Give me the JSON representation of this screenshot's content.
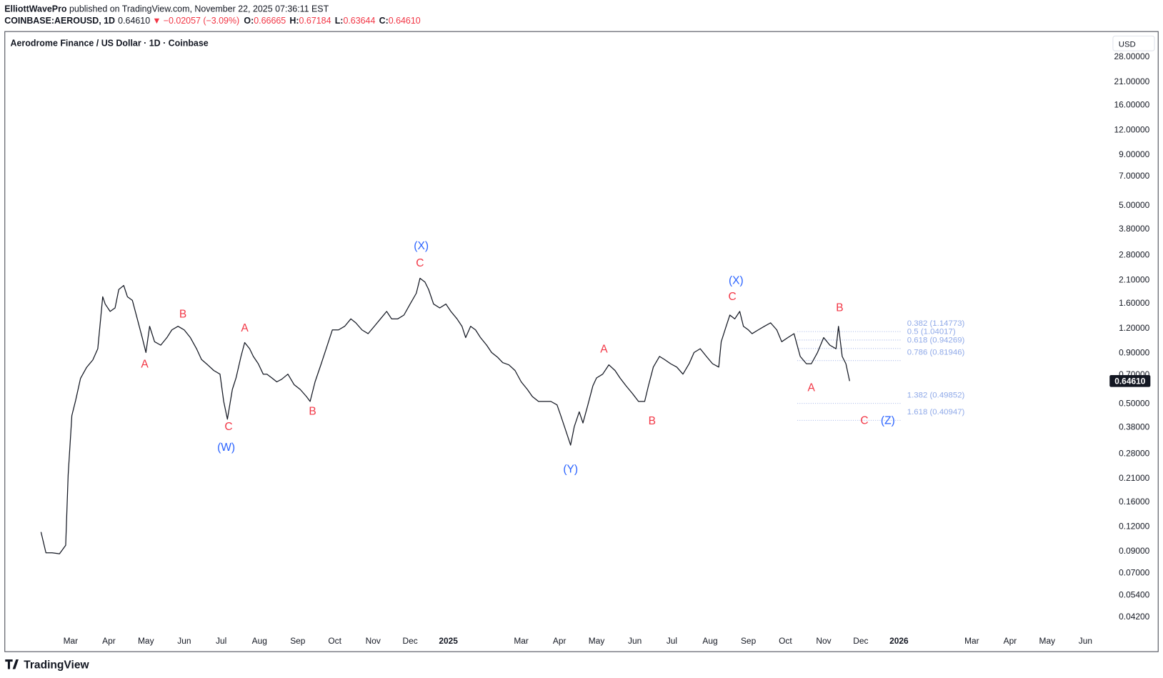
{
  "header": {
    "author": "ElliottWavePro",
    "published": " published on TradingView.com, November 22, 2025 07:36:11 EST",
    "symbol": "COINBASE:AEROUSD, 1D",
    "last": "0.64610",
    "arrow": "▼",
    "change": "−0.02057 (−3.09%)",
    "o_label": "O:",
    "o": "0.66665",
    "h_label": "H:",
    "h": "0.67184",
    "l_label": "L:",
    "l": "0.63644",
    "c_label": "C:",
    "c": "0.64610"
  },
  "footer": {
    "brand": "TradingView"
  },
  "chart_data": {
    "type": "line",
    "title": "Aerodrome Finance / US Dollar · 1D · Coinbase",
    "currency": "USD",
    "color": "#131722",
    "log_scale": true,
    "grid": false,
    "x": [
      "2024-02-06",
      "2024-02-10",
      "2024-02-15",
      "2024-02-21",
      "2024-02-26",
      "2024-02-28",
      "2024-03-02",
      "2024-03-05",
      "2024-03-09",
      "2024-03-14",
      "2024-03-19",
      "2024-03-23",
      "2024-03-27",
      "2024-03-29",
      "2024-04-02",
      "2024-04-06",
      "2024-04-09",
      "2024-04-13",
      "2024-04-16",
      "2024-04-20",
      "2024-04-24",
      "2024-04-28",
      "2024-05-01",
      "2024-05-04",
      "2024-05-08",
      "2024-05-13",
      "2024-05-18",
      "2024-05-22",
      "2024-05-27",
      "2024-06-01",
      "2024-06-06",
      "2024-06-11",
      "2024-06-15",
      "2024-06-20",
      "2024-06-25",
      "2024-06-30",
      "2024-07-03",
      "2024-07-06",
      "2024-07-10",
      "2024-07-13",
      "2024-07-17",
      "2024-07-20",
      "2024-07-24",
      "2024-07-27",
      "2024-07-31",
      "2024-08-04",
      "2024-08-07",
      "2024-08-11",
      "2024-08-15",
      "2024-08-19",
      "2024-08-24",
      "2024-08-29",
      "2024-09-03",
      "2024-09-08",
      "2024-09-11",
      "2024-09-15",
      "2024-09-20",
      "2024-09-24",
      "2024-09-29",
      "2024-10-04",
      "2024-10-09",
      "2024-10-14",
      "2024-10-18",
      "2024-10-23",
      "2024-10-28",
      "2024-11-02",
      "2024-11-07",
      "2024-11-12",
      "2024-11-16",
      "2024-11-21",
      "2024-11-26",
      "2024-12-01",
      "2024-12-06",
      "2024-12-09",
      "2024-12-13",
      "2024-12-16",
      "2024-12-20",
      "2024-12-25",
      "2024-12-30",
      "2025-01-03",
      "2025-01-08",
      "2025-01-12",
      "2025-01-15",
      "2025-01-19",
      "2025-01-23",
      "2025-01-27",
      "2025-02-01",
      "2025-02-05",
      "2025-02-10",
      "2025-02-14",
      "2025-02-19",
      "2025-02-24",
      "2025-03-01",
      "2025-03-06",
      "2025-03-10",
      "2025-03-15",
      "2025-03-20",
      "2025-03-25",
      "2025-03-30",
      "2025-04-02",
      "2025-04-06",
      "2025-04-10",
      "2025-04-13",
      "2025-04-17",
      "2025-04-20",
      "2025-04-24",
      "2025-04-28",
      "2025-05-01",
      "2025-05-06",
      "2025-05-11",
      "2025-05-16",
      "2025-05-20",
      "2025-05-25",
      "2025-05-30",
      "2025-06-04",
      "2025-06-09",
      "2025-06-12",
      "2025-06-16",
      "2025-06-21",
      "2025-06-25",
      "2025-06-30",
      "2025-07-05",
      "2025-07-10",
      "2025-07-15",
      "2025-07-19",
      "2025-07-24",
      "2025-07-29",
      "2025-08-03",
      "2025-08-08",
      "2025-08-10",
      "2025-08-14",
      "2025-08-17",
      "2025-08-21",
      "2025-08-25",
      "2025-08-28",
      "2025-09-01",
      "2025-09-04",
      "2025-09-09",
      "2025-09-14",
      "2025-09-19",
      "2025-09-24",
      "2025-09-28",
      "2025-10-03",
      "2025-10-08",
      "2025-10-13",
      "2025-10-18",
      "2025-10-22",
      "2025-10-27",
      "2025-11-01",
      "2025-11-06",
      "2025-11-11",
      "2025-11-13",
      "2025-11-16",
      "2025-11-19",
      "2025-11-22"
    ],
    "values": [
      0.112,
      0.088,
      0.088,
      0.087,
      0.096,
      0.217,
      0.433,
      0.514,
      0.666,
      0.758,
      0.826,
      0.94,
      1.72,
      1.58,
      1.45,
      1.51,
      1.87,
      1.96,
      1.72,
      1.65,
      1.33,
      1.07,
      0.9,
      1.22,
      1.02,
      0.98,
      1.07,
      1.17,
      1.22,
      1.17,
      1.07,
      0.94,
      0.83,
      0.78,
      0.73,
      0.7,
      0.51,
      0.415,
      0.586,
      0.67,
      0.86,
      1.01,
      0.94,
      0.86,
      0.79,
      0.7,
      0.7,
      0.67,
      0.64,
      0.66,
      0.7,
      0.62,
      0.586,
      0.54,
      0.51,
      0.64,
      0.79,
      0.94,
      1.17,
      1.17,
      1.22,
      1.33,
      1.27,
      1.17,
      1.12,
      1.22,
      1.33,
      1.45,
      1.33,
      1.33,
      1.39,
      1.58,
      1.79,
      2.13,
      2.04,
      1.87,
      1.58,
      1.51,
      1.58,
      1.45,
      1.33,
      1.22,
      1.07,
      1.22,
      1.17,
      1.07,
      0.98,
      0.9,
      0.85,
      0.8,
      0.78,
      0.73,
      0.64,
      0.586,
      0.54,
      0.51,
      0.51,
      0.51,
      0.49,
      0.433,
      0.365,
      0.307,
      0.381,
      0.452,
      0.397,
      0.49,
      0.61,
      0.67,
      0.7,
      0.78,
      0.73,
      0.67,
      0.61,
      0.56,
      0.51,
      0.51,
      0.61,
      0.76,
      0.86,
      0.83,
      0.79,
      0.76,
      0.7,
      0.79,
      0.9,
      0.94,
      0.86,
      0.79,
      0.76,
      1.02,
      1.22,
      1.39,
      1.33,
      1.45,
      1.22,
      1.17,
      1.12,
      1.17,
      1.22,
      1.27,
      1.17,
      1.02,
      1.07,
      1.12,
      0.86,
      0.79,
      0.79,
      0.9,
      1.07,
      0.98,
      0.94,
      1.22,
      0.86,
      0.79,
      0.6461
    ],
    "xlim": [
      "2024-01-08",
      "2026-06-20"
    ],
    "xticks": [
      {
        "value": "2024-03-01",
        "label": "Mar"
      },
      {
        "value": "2024-04-01",
        "label": "Apr"
      },
      {
        "value": "2024-05-01",
        "label": "May"
      },
      {
        "value": "2024-06-01",
        "label": "Jun"
      },
      {
        "value": "2024-07-01",
        "label": "Jul"
      },
      {
        "value": "2024-08-01",
        "label": "Aug"
      },
      {
        "value": "2024-09-01",
        "label": "Sep"
      },
      {
        "value": "2024-10-01",
        "label": "Oct"
      },
      {
        "value": "2024-11-01",
        "label": "Nov"
      },
      {
        "value": "2024-12-01",
        "label": "Dec"
      },
      {
        "value": "2025-01-01",
        "label": "2025"
      },
      {
        "value": "2025-03-01",
        "label": "Mar"
      },
      {
        "value": "2025-04-01",
        "label": "Apr"
      },
      {
        "value": "2025-05-01",
        "label": "May"
      },
      {
        "value": "2025-06-01",
        "label": "Jun"
      },
      {
        "value": "2025-07-01",
        "label": "Jul"
      },
      {
        "value": "2025-08-01",
        "label": "Aug"
      },
      {
        "value": "2025-09-01",
        "label": "Sep"
      },
      {
        "value": "2025-10-01",
        "label": "Oct"
      },
      {
        "value": "2025-11-01",
        "label": "Nov"
      },
      {
        "value": "2025-12-01",
        "label": "Dec"
      },
      {
        "value": "2026-01-01",
        "label": "2026"
      },
      {
        "value": "2026-03-01",
        "label": "Mar"
      },
      {
        "value": "2026-04-01",
        "label": "Apr"
      },
      {
        "value": "2026-05-01",
        "label": "May"
      },
      {
        "value": "2026-06-01",
        "label": "Jun"
      }
    ],
    "ylim": [
      0.0363,
      36.9
    ],
    "yticks": [
      {
        "value": 28,
        "label": "28.00000"
      },
      {
        "value": 21,
        "label": "21.00000"
      },
      {
        "value": 16,
        "label": "16.00000"
      },
      {
        "value": 12,
        "label": "12.00000"
      },
      {
        "value": 9,
        "label": "9.00000"
      },
      {
        "value": 7,
        "label": "7.00000"
      },
      {
        "value": 5,
        "label": "5.00000"
      },
      {
        "value": 3.8,
        "label": "3.80000"
      },
      {
        "value": 2.8,
        "label": "2.80000"
      },
      {
        "value": 2.1,
        "label": "2.10000"
      },
      {
        "value": 1.6,
        "label": "1.60000"
      },
      {
        "value": 1.2,
        "label": "1.20000"
      },
      {
        "value": 0.9,
        "label": "0.90000"
      },
      {
        "value": 0.7,
        "label": "0.70000"
      },
      {
        "value": 0.5,
        "label": "0.50000"
      },
      {
        "value": 0.38,
        "label": "0.38000"
      },
      {
        "value": 0.28,
        "label": "0.28000"
      },
      {
        "value": 0.21,
        "label": "0.21000"
      },
      {
        "value": 0.16,
        "label": "0.16000"
      },
      {
        "value": 0.12,
        "label": "0.12000"
      },
      {
        "value": 0.09,
        "label": "0.09000"
      },
      {
        "value": 0.07,
        "label": "0.07000"
      },
      {
        "value": 0.054,
        "label": "0.05400"
      },
      {
        "value": 0.042,
        "label": "0.04200"
      }
    ],
    "last_price": {
      "value": 0.6461,
      "label": "0.64610"
    },
    "fib_levels": [
      {
        "value": 1.14773,
        "label": "0.382 (1.14773)"
      },
      {
        "value": 1.04017,
        "label": "0.5 (1.04017)"
      },
      {
        "value": 0.94269,
        "label": "0.618 (0.94269)"
      },
      {
        "value": 0.81946,
        "label": "0.786 (0.81946)"
      },
      {
        "value": 0.49852,
        "label": "1.382 (0.49852)"
      },
      {
        "value": 0.40947,
        "label": "1.618 (0.40947)"
      }
    ],
    "annotations": [
      {
        "text": "A",
        "x": "2024-04-30",
        "y": 0.79,
        "color": "#f23645"
      },
      {
        "text": "B",
        "x": "2024-05-31",
        "y": 1.41,
        "color": "#f23645"
      },
      {
        "text": "C",
        "x": "2024-07-07",
        "y": 0.381,
        "color": "#f23645"
      },
      {
        "text": "(W)",
        "x": "2024-07-05",
        "y": 0.3,
        "color": "#2962ff"
      },
      {
        "text": "A",
        "x": "2024-07-20",
        "y": 1.2,
        "color": "#f23645"
      },
      {
        "text": "B",
        "x": "2024-09-13",
        "y": 0.456,
        "color": "#f23645"
      },
      {
        "text": "C",
        "x": "2024-12-09",
        "y": 2.55,
        "color": "#f23645"
      },
      {
        "text": "(X)",
        "x": "2024-12-10",
        "y": 3.11,
        "color": "#2962ff"
      },
      {
        "text": "(Y)",
        "x": "2025-04-10",
        "y": 0.233,
        "color": "#2962ff"
      },
      {
        "text": "A",
        "x": "2025-05-07",
        "y": 0.94,
        "color": "#f23645"
      },
      {
        "text": "B",
        "x": "2025-06-15",
        "y": 0.408,
        "color": "#f23645"
      },
      {
        "text": "C",
        "x": "2025-08-19",
        "y": 1.73,
        "color": "#f23645"
      },
      {
        "text": "(X)",
        "x": "2025-08-22",
        "y": 2.08,
        "color": "#2962ff"
      },
      {
        "text": "A",
        "x": "2025-10-22",
        "y": 0.6,
        "color": "#f23645"
      },
      {
        "text": "B",
        "x": "2025-11-14",
        "y": 1.52,
        "color": "#f23645"
      },
      {
        "text": "C",
        "x": "2025-12-04",
        "y": 0.41,
        "color": "#f23645"
      },
      {
        "text": "(Z)",
        "x": "2025-12-23",
        "y": 0.41,
        "color": "#2962ff"
      }
    ]
  }
}
